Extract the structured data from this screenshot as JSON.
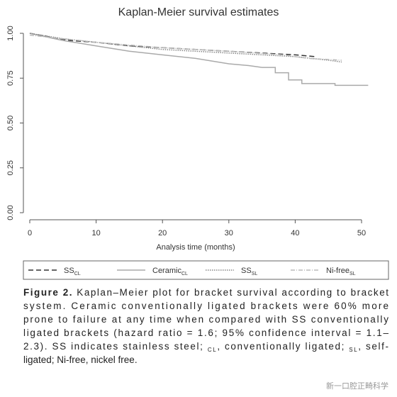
{
  "chart_data": {
    "type": "line",
    "title": "Kaplan-Meier survival estimates",
    "x_label": "Analysis time (months)",
    "xlim": [
      0,
      52
    ],
    "xticks": [
      0,
      10,
      20,
      30,
      40,
      50
    ],
    "ylim": [
      0,
      1
    ],
    "yticks": [
      {
        "value": 0,
        "label": "0.00"
      },
      {
        "value": 0.25,
        "label": "0.25"
      },
      {
        "value": 0.5,
        "label": "0.50"
      },
      {
        "value": 0.75,
        "label": "0.75"
      },
      {
        "value": 1,
        "label": "1.00"
      }
    ],
    "series": [
      {
        "name": "SS",
        "subscript": "CL",
        "color": "#333333",
        "dash": "7,4",
        "x": [
          0,
          3,
          6,
          10,
          15,
          20,
          25,
          30,
          35,
          40,
          43
        ],
        "values": [
          1,
          0.98,
          0.96,
          0.95,
          0.93,
          0.92,
          0.91,
          0.9,
          0.89,
          0.88,
          0.87
        ]
      },
      {
        "name": "Ceramic",
        "subscript": "CL",
        "color": "#aaaaaa",
        "dash": "",
        "x": [
          0,
          5,
          10,
          15,
          20,
          25,
          30,
          33,
          35,
          37,
          37,
          39,
          39,
          41,
          41,
          46,
          46,
          51
        ],
        "values": [
          1,
          0.96,
          0.93,
          0.9,
          0.88,
          0.86,
          0.83,
          0.82,
          0.81,
          0.81,
          0.78,
          0.78,
          0.74,
          0.74,
          0.72,
          0.72,
          0.71,
          0.71
        ]
      },
      {
        "name": "SS",
        "subscript": "SL",
        "color": "#888888",
        "dash": "1.5,1.5",
        "x": [
          0,
          5,
          10,
          15,
          20,
          25,
          30,
          35,
          40,
          45,
          47
        ],
        "values": [
          1,
          0.97,
          0.95,
          0.93,
          0.91,
          0.9,
          0.89,
          0.88,
          0.87,
          0.85,
          0.84
        ]
      },
      {
        "name": "Ni-free",
        "subscript": "SL",
        "color": "#bbbbbb",
        "dash": "6,2,1,2",
        "x": [
          0,
          5,
          10,
          20,
          30,
          38,
          42,
          47
        ],
        "values": [
          0.99,
          0.97,
          0.95,
          0.92,
          0.9,
          0.88,
          0.86,
          0.85
        ]
      }
    ]
  },
  "caption": {
    "lines": [
      [
        {
          "text": "Figure 2.",
          "bold": true
        },
        {
          "text": " Kaplan–Meier plot for bracket survival according to bracket"
        }
      ],
      [
        {
          "text": "system. Ceramic conventionally ligated brackets were 60% more"
        }
      ],
      [
        {
          "text": "prone to failure at any time when compared with SS conventionally"
        }
      ],
      [
        {
          "text": "ligated brackets (hazard ratio = 1.6; 95% confidence interval = 1.1–"
        }
      ],
      [
        {
          "text": "2.3). SS indicates stainless steel; "
        },
        {
          "text": "CL",
          "sub": true
        },
        {
          "text": ", conventionally ligated; "
        },
        {
          "text": "SL",
          "sub": true
        },
        {
          "text": ", self-"
        }
      ],
      [
        {
          "text": "ligated; Ni-free, nickel free."
        }
      ]
    ]
  },
  "watermark": "新一口腔正畸科学"
}
